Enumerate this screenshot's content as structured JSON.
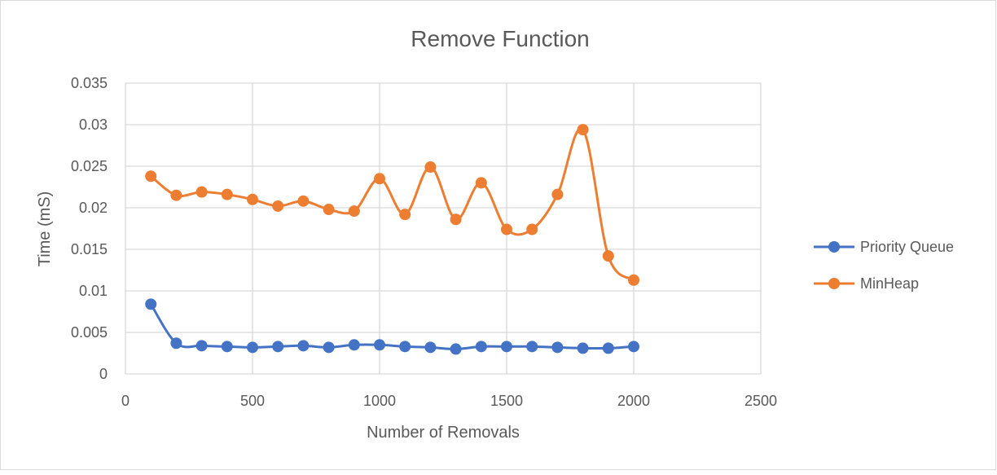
{
  "chart_data": {
    "type": "scatter",
    "title": "Remove Function",
    "xlabel": "Number of Removals",
    "ylabel": "Time (mS)",
    "xlim": [
      0,
      2500
    ],
    "ylim": [
      0,
      0.035
    ],
    "x_ticks": [
      "0",
      "500",
      "1000",
      "1500",
      "2000",
      "2500"
    ],
    "y_ticks": [
      "0",
      "0.005",
      "0.01",
      "0.015",
      "0.02",
      "0.025",
      "0.03",
      "0.035"
    ],
    "grid": true,
    "smoothed_lines": true,
    "legend_position": "right",
    "x": [
      100,
      200,
      300,
      400,
      500,
      600,
      700,
      800,
      900,
      1000,
      1100,
      1200,
      1300,
      1400,
      1500,
      1600,
      1700,
      1800,
      1900,
      2000
    ],
    "series": [
      {
        "name": "Priority Queue",
        "color": "#4472c4",
        "values": [
          0.0084,
          0.0037,
          0.0034,
          0.0033,
          0.0032,
          0.0033,
          0.0034,
          0.0032,
          0.0035,
          0.0035,
          0.0033,
          0.0032,
          0.003,
          0.0033,
          0.0033,
          0.0033,
          0.0032,
          0.0031,
          0.0031,
          0.0033
        ]
      },
      {
        "name": "MinHeap",
        "color": "#ed7d31",
        "values": [
          0.0238,
          0.0215,
          0.0219,
          0.0216,
          0.021,
          0.0202,
          0.0208,
          0.0198,
          0.0196,
          0.0235,
          0.0192,
          0.0249,
          0.0186,
          0.023,
          0.0174,
          0.0174,
          0.0216,
          0.0294,
          0.0142,
          0.0113
        ]
      }
    ]
  }
}
